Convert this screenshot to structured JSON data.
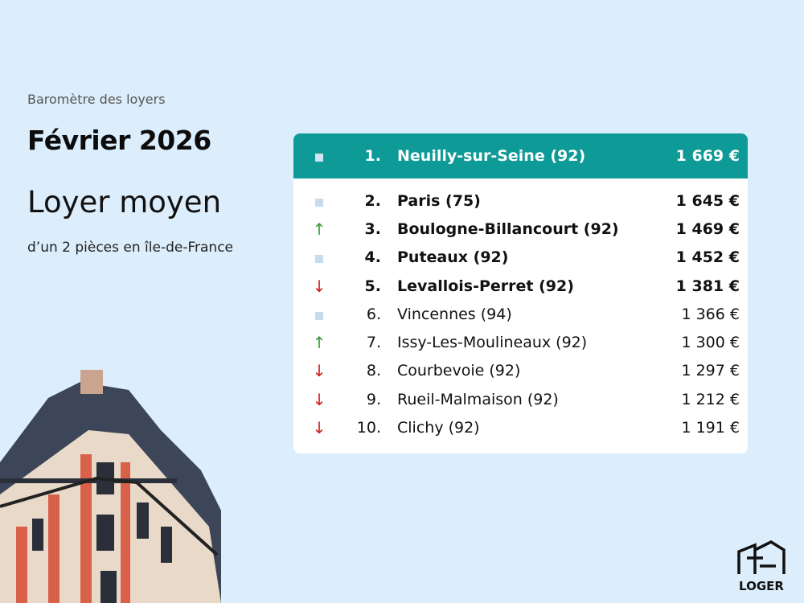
{
  "header": {
    "kicker": "Baromètre des loyers",
    "month": "Février 2026",
    "title": "Loyer moyen",
    "subtitle": "d’un 2 pièces en île-de-France"
  },
  "colors": {
    "accent": "#0e9a96",
    "background": "#dcedfb",
    "up": "#3a9a3a",
    "down": "#d21c1c"
  },
  "ranking": [
    {
      "trend": "stable",
      "rank": "1.",
      "name": "Neuilly-sur-Seine (92)",
      "price": "1 669 €"
    },
    {
      "trend": "stable",
      "rank": "2.",
      "name": "Paris (75)",
      "price": "1 645 €"
    },
    {
      "trend": "up",
      "rank": "3.",
      "name": "Boulogne-Billancourt (92)",
      "price": "1 469 €"
    },
    {
      "trend": "stable",
      "rank": "4.",
      "name": "Puteaux (92)",
      "price": "1 452 €"
    },
    {
      "trend": "down",
      "rank": "5.",
      "name": "Levallois-Perret (92)",
      "price": "1 381 €"
    },
    {
      "trend": "stable",
      "rank": "6.",
      "name": "Vincennes (94)",
      "price": "1 366 €"
    },
    {
      "trend": "up",
      "rank": "7.",
      "name": "Issy-Les-Moulineaux (92)",
      "price": "1 300 €"
    },
    {
      "trend": "down",
      "rank": "8.",
      "name": "Courbevoie (92)",
      "price": "1 297 €"
    },
    {
      "trend": "down",
      "rank": "9.",
      "name": "Rueil-Malmaison (92)",
      "price": "1 212 €"
    },
    {
      "trend": "down",
      "rank": "10.",
      "name": "Clichy (92)",
      "price": "1 191 €"
    }
  ],
  "logo": {
    "text": "LOGER"
  }
}
